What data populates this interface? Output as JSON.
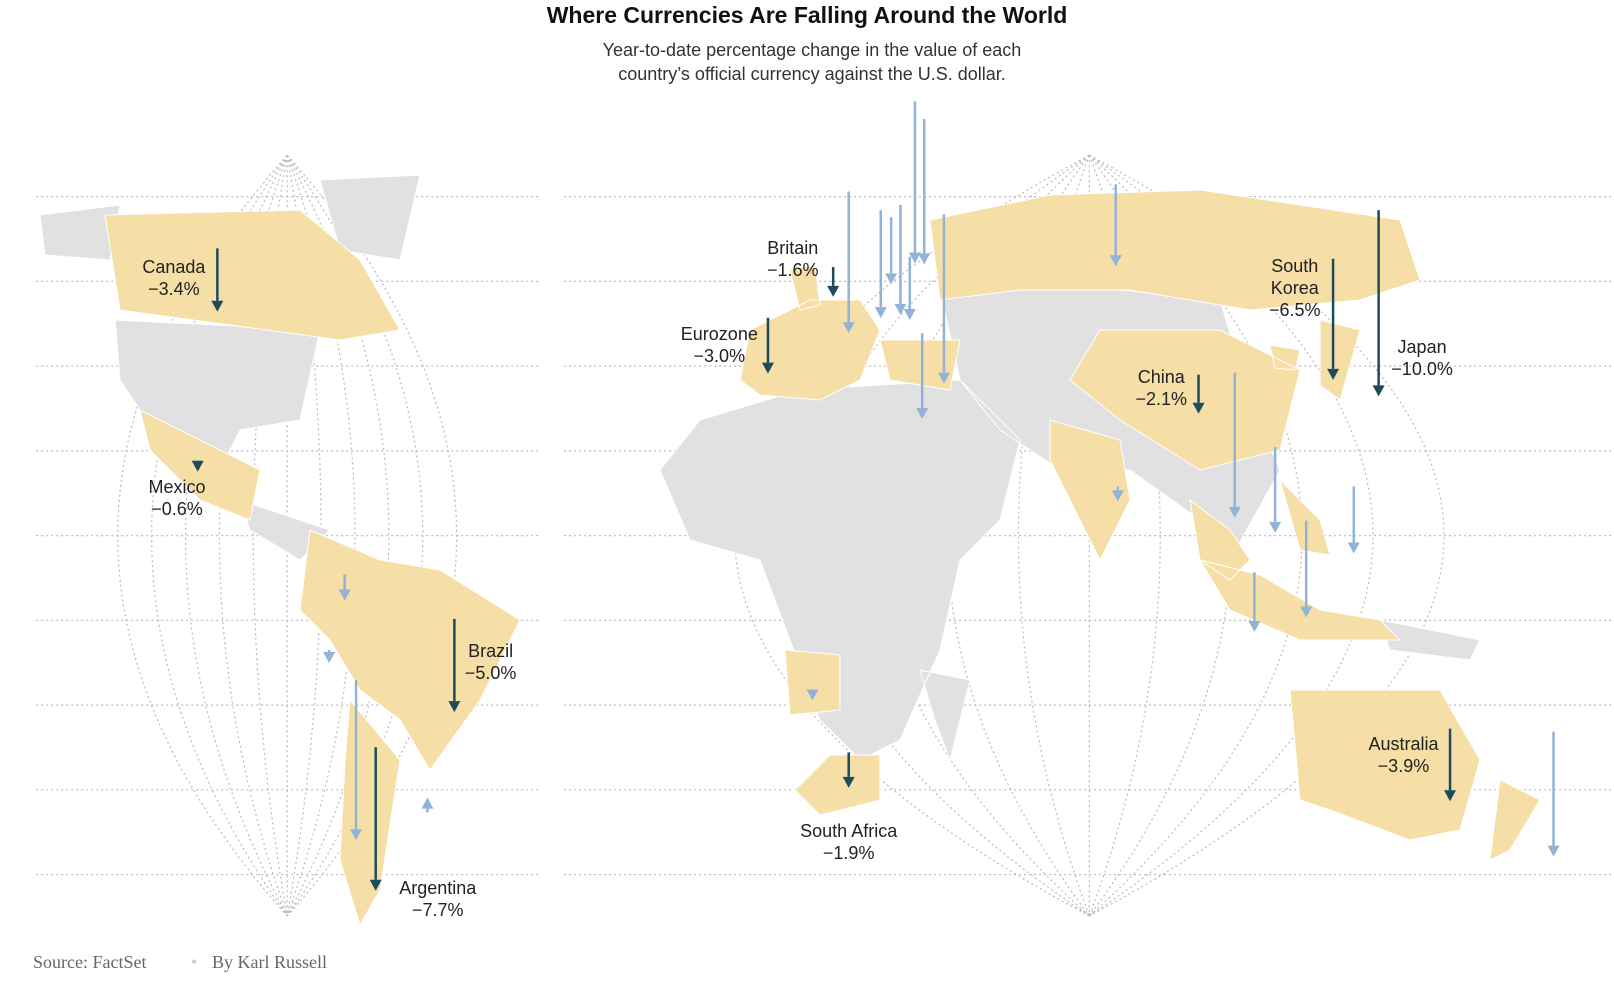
{
  "title": "Where Currencies Are Falling Around the World",
  "subtitle": "Year-to-date percentage change in the value of each country’s official currency against the U.S. dollar.",
  "labeled": {
    "names": [
      "Canada",
      "Mexico",
      "Brazil",
      "Argentina",
      "Britain",
      "Eurozone",
      "South Africa",
      "China",
      "South Korea",
      "Japan",
      "Australia"
    ],
    "values": [
      -3.4,
      -0.6,
      -5.0,
      -7.7,
      -1.6,
      -3.0,
      -1.9,
      -2.1,
      -6.5,
      -10.0,
      -3.9
    ],
    "value_labels": [
      "−3.4%",
      "−0.6%",
      "−5.0%",
      "−7.7%",
      "−1.6%",
      "−3.0%",
      "−1.9%",
      "−2.1%",
      "−6.5%",
      "−10.0%",
      "−3.9%"
    ]
  },
  "unlabeled": {
    "values": [
      -4.4,
      -8.7,
      -7.8,
      -7.6,
      -5.8,
      -3.6,
      -5.9,
      -3.4,
      -9.1,
      -4.6,
      -0.8,
      -7.8,
      -4.6,
      -3.6,
      -3.2,
      -5.2,
      -6.7,
      -1.4,
      -0.7,
      -8.6,
      -0.6,
      0.8
    ]
  },
  "source": "Source: FactSet",
  "byline": "By Karl Russell"
}
